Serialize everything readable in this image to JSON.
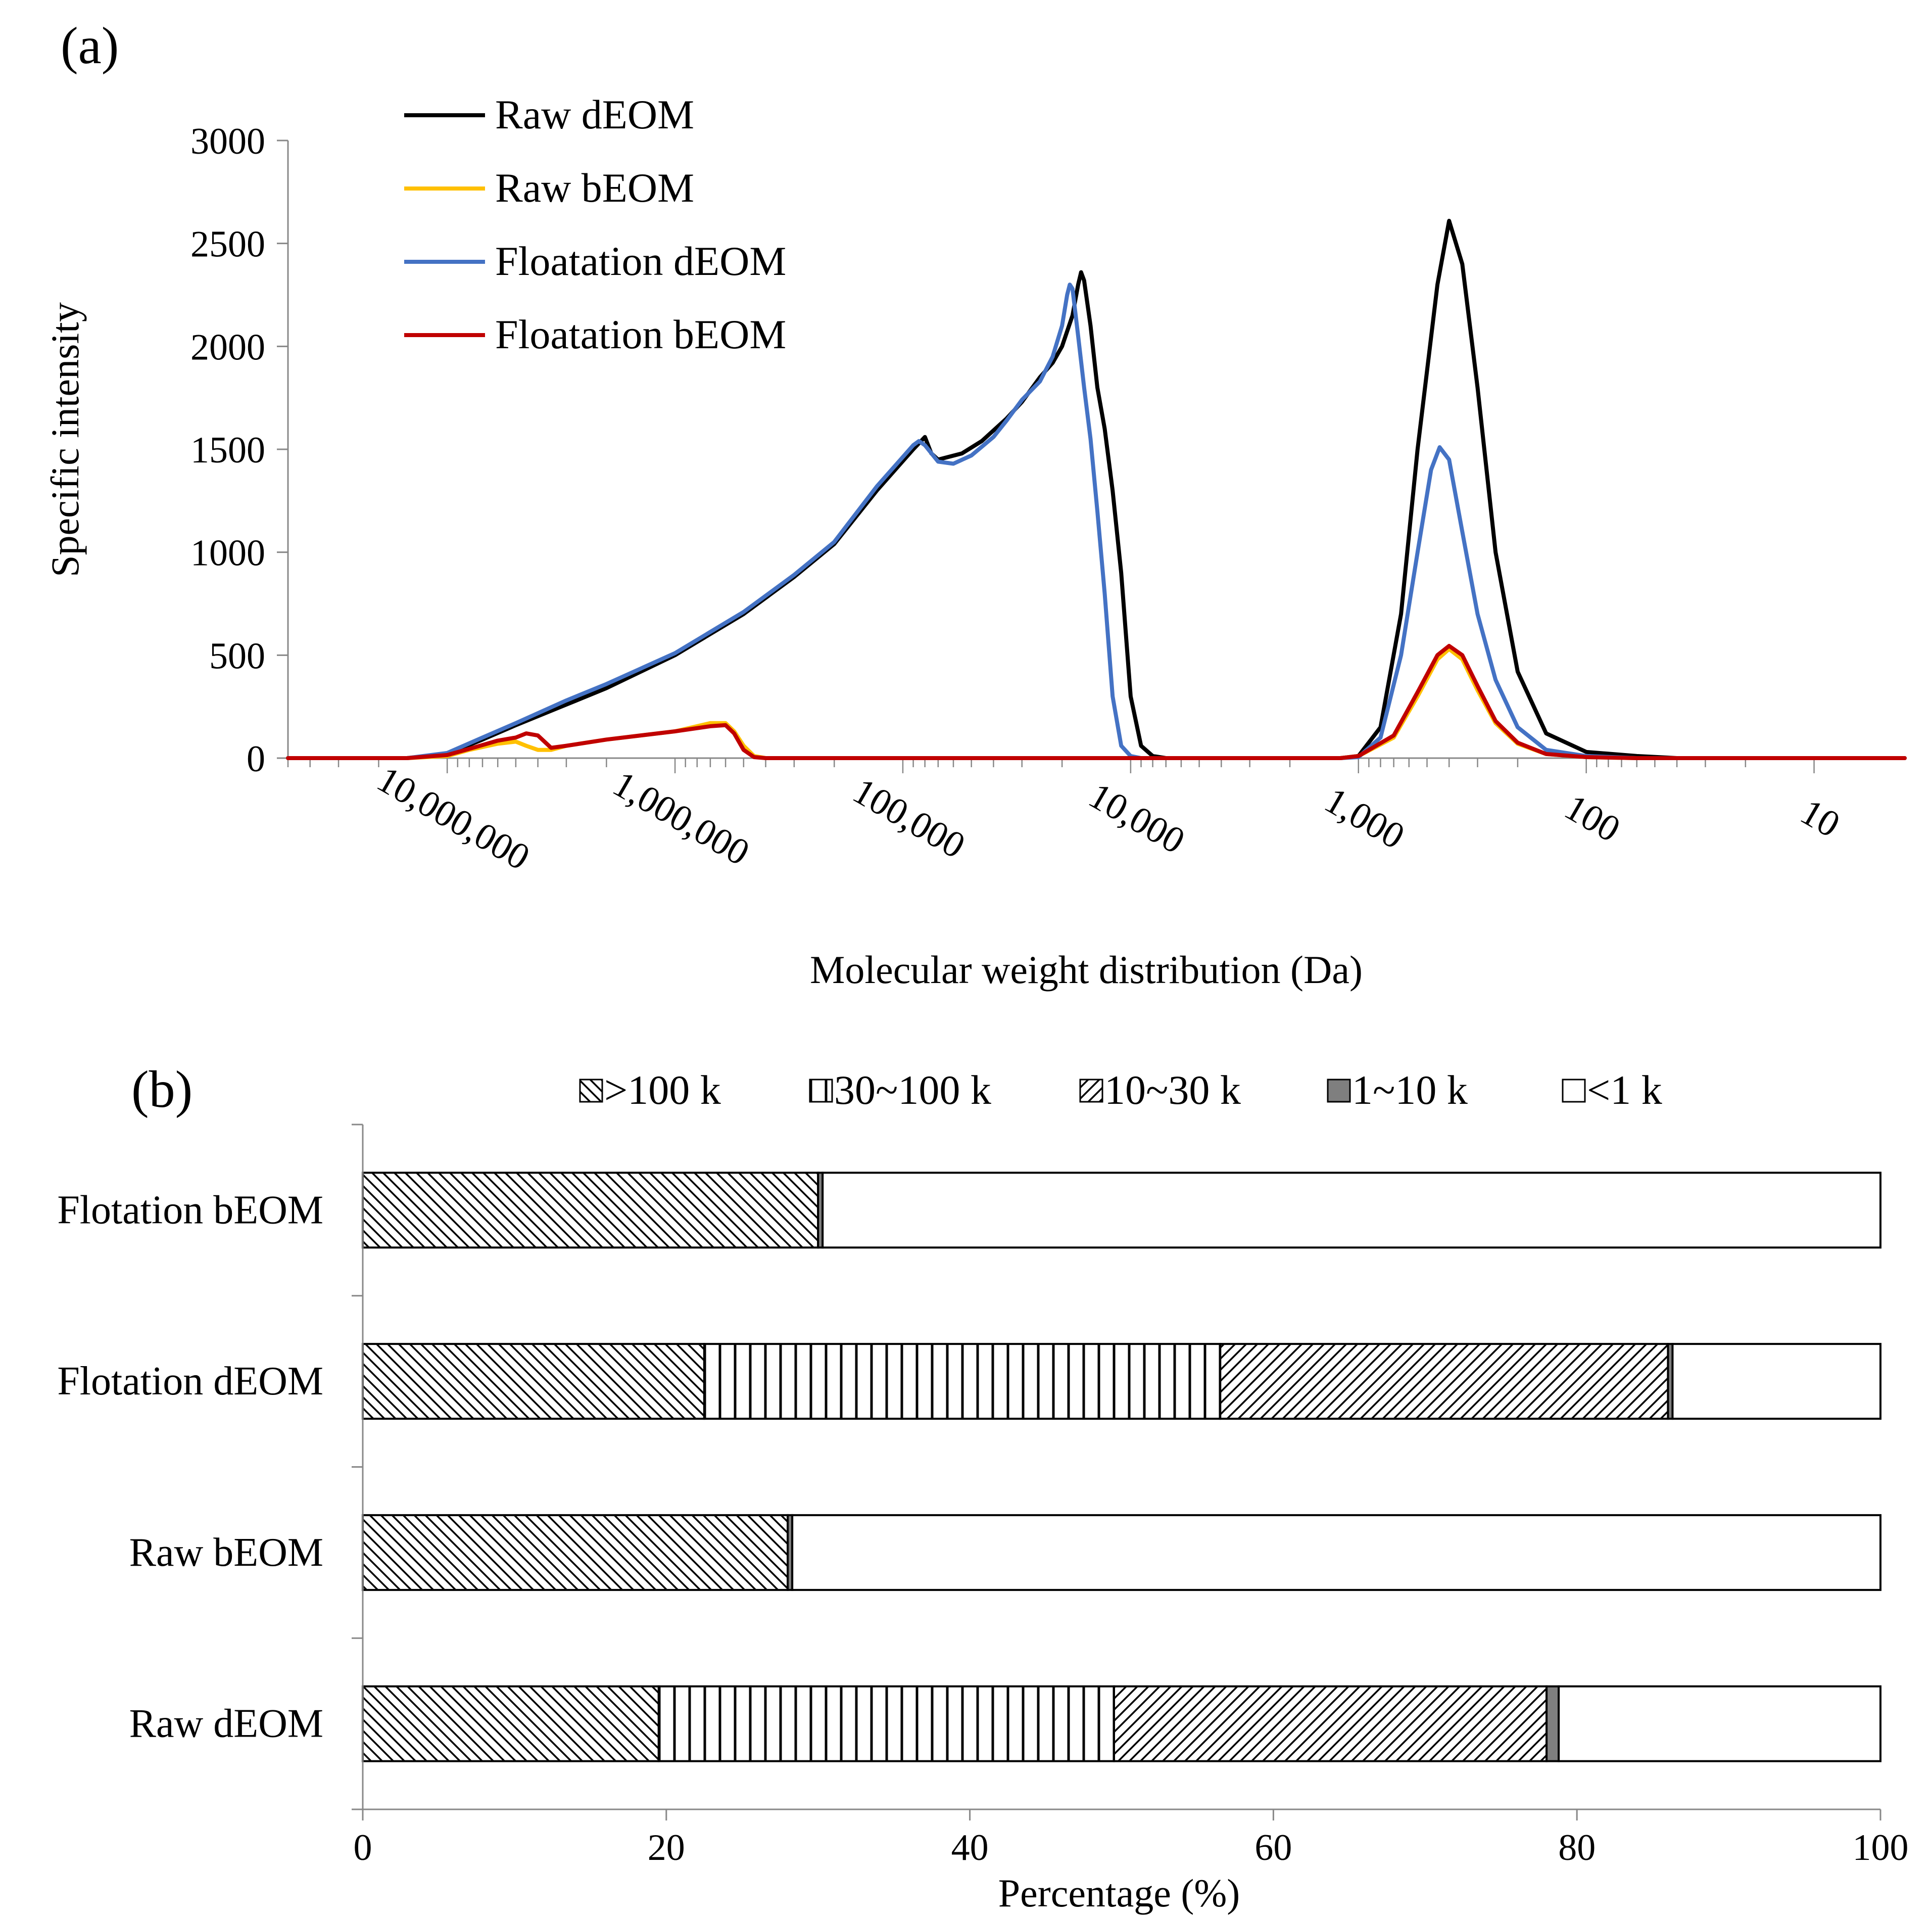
{
  "chart_data": [
    {
      "panel_label": "(a)",
      "type": "line",
      "title": "",
      "xlabel": "Molecular weight distribution (Da)",
      "ylabel": "Specific intensity",
      "x_scale": "log-reversed",
      "xlim": [
        50000000,
        4
      ],
      "ylim": [
        0,
        3000
      ],
      "yticks": [
        "0",
        "500",
        "1000",
        "1500",
        "2000",
        "2500",
        "3000"
      ],
      "xtick_labels": [
        {
          "value": 10000000,
          "label": "10,000,000"
        },
        {
          "value": 1000000,
          "label": "1,000,000"
        },
        {
          "value": 100000,
          "label": "100,000"
        },
        {
          "value": 10000,
          "label": "10,000"
        },
        {
          "value": 1000,
          "label": "1,000"
        },
        {
          "value": 100,
          "label": "100"
        },
        {
          "value": 10,
          "label": "10"
        }
      ],
      "legend_position": "top-left",
      "series": [
        {
          "name": "Raw dEOM",
          "color": "#000000",
          "points": [
            [
              50000000,
              0
            ],
            [
              15000000,
              0
            ],
            [
              10000000,
              20
            ],
            [
              7000000,
              90
            ],
            [
              5000000,
              160
            ],
            [
              3000000,
              260
            ],
            [
              2000000,
              340
            ],
            [
              1000000,
              500
            ],
            [
              500000,
              700
            ],
            [
              300000,
              880
            ],
            [
              200000,
              1040
            ],
            [
              130000,
              1300
            ],
            [
              90000,
              1500
            ],
            [
              80000,
              1560
            ],
            [
              75000,
              1480
            ],
            [
              70000,
              1450
            ],
            [
              55000,
              1480
            ],
            [
              45000,
              1540
            ],
            [
              35000,
              1650
            ],
            [
              30000,
              1730
            ],
            [
              25000,
              1850
            ],
            [
              22000,
              1920
            ],
            [
              20000,
              2000
            ],
            [
              18000,
              2150
            ],
            [
              17000,
              2300
            ],
            [
              16500,
              2360
            ],
            [
              16000,
              2320
            ],
            [
              15000,
              2100
            ],
            [
              14000,
              1800
            ],
            [
              13000,
              1600
            ],
            [
              12000,
              1300
            ],
            [
              11000,
              900
            ],
            [
              10000,
              300
            ],
            [
              9000,
              60
            ],
            [
              8000,
              10
            ],
            [
              7000,
              0
            ],
            [
              1200,
              0
            ],
            [
              1000,
              10
            ],
            [
              800,
              150
            ],
            [
              650,
              700
            ],
            [
              550,
              1500
            ],
            [
              450,
              2300
            ],
            [
              400,
              2610
            ],
            [
              350,
              2400
            ],
            [
              300,
              1800
            ],
            [
              250,
              1000
            ],
            [
              200,
              420
            ],
            [
              150,
              120
            ],
            [
              100,
              30
            ],
            [
              60,
              10
            ],
            [
              40,
              0
            ],
            [
              4,
              0
            ]
          ]
        },
        {
          "name": "Raw bEOM",
          "color": "#FFC000",
          "points": [
            [
              50000000,
              0
            ],
            [
              15000000,
              0
            ],
            [
              10000000,
              10
            ],
            [
              8000000,
              40
            ],
            [
              6000000,
              70
            ],
            [
              5000000,
              80
            ],
            [
              4500000,
              60
            ],
            [
              4000000,
              40
            ],
            [
              3500000,
              40
            ],
            [
              3000000,
              60
            ],
            [
              2000000,
              90
            ],
            [
              1000000,
              130
            ],
            [
              700000,
              170
            ],
            [
              600000,
              170
            ],
            [
              550000,
              130
            ],
            [
              500000,
              60
            ],
            [
              450000,
              10
            ],
            [
              400000,
              0
            ],
            [
              1200,
              0
            ],
            [
              1000,
              10
            ],
            [
              700,
              100
            ],
            [
              550,
              300
            ],
            [
              450,
              480
            ],
            [
              400,
              530
            ],
            [
              350,
              480
            ],
            [
              300,
              330
            ],
            [
              250,
              170
            ],
            [
              200,
              70
            ],
            [
              150,
              20
            ],
            [
              100,
              5
            ],
            [
              60,
              0
            ],
            [
              4,
              0
            ]
          ]
        },
        {
          "name": "Floatation dEOM",
          "color": "#4472C4",
          "points": [
            [
              50000000,
              0
            ],
            [
              15000000,
              0
            ],
            [
              10000000,
              25
            ],
            [
              7000000,
              100
            ],
            [
              5000000,
              170
            ],
            [
              3000000,
              280
            ],
            [
              2000000,
              360
            ],
            [
              1000000,
              510
            ],
            [
              500000,
              710
            ],
            [
              300000,
              890
            ],
            [
              200000,
              1050
            ],
            [
              130000,
              1320
            ],
            [
              90000,
              1520
            ],
            [
              85000,
              1540
            ],
            [
              80000,
              1520
            ],
            [
              70000,
              1440
            ],
            [
              60000,
              1430
            ],
            [
              50000,
              1470
            ],
            [
              40000,
              1560
            ],
            [
              35000,
              1640
            ],
            [
              30000,
              1740
            ],
            [
              25000,
              1830
            ],
            [
              22000,
              1950
            ],
            [
              20000,
              2100
            ],
            [
              19000,
              2250
            ],
            [
              18500,
              2300
            ],
            [
              18000,
              2280
            ],
            [
              17000,
              2050
            ],
            [
              16000,
              1800
            ],
            [
              15000,
              1550
            ],
            [
              14000,
              1200
            ],
            [
              13000,
              800
            ],
            [
              12000,
              300
            ],
            [
              11000,
              60
            ],
            [
              10000,
              10
            ],
            [
              9000,
              0
            ],
            [
              1200,
              0
            ],
            [
              1000,
              5
            ],
            [
              800,
              100
            ],
            [
              650,
              500
            ],
            [
              550,
              1000
            ],
            [
              480,
              1400
            ],
            [
              440,
              1510
            ],
            [
              400,
              1450
            ],
            [
              350,
              1100
            ],
            [
              300,
              700
            ],
            [
              250,
              380
            ],
            [
              200,
              150
            ],
            [
              150,
              40
            ],
            [
              100,
              10
            ],
            [
              60,
              0
            ],
            [
              4,
              0
            ]
          ]
        },
        {
          "name": "Floatation bEOM",
          "color": "#C00000",
          "points": [
            [
              50000000,
              0
            ],
            [
              15000000,
              0
            ],
            [
              10000000,
              15
            ],
            [
              8000000,
              45
            ],
            [
              6000000,
              85
            ],
            [
              5000000,
              100
            ],
            [
              4500000,
              120
            ],
            [
              4000000,
              110
            ],
            [
              3500000,
              50
            ],
            [
              3000000,
              60
            ],
            [
              2000000,
              90
            ],
            [
              1000000,
              130
            ],
            [
              700000,
              155
            ],
            [
              600000,
              160
            ],
            [
              550000,
              120
            ],
            [
              500000,
              40
            ],
            [
              450000,
              5
            ],
            [
              400000,
              0
            ],
            [
              1200,
              0
            ],
            [
              1000,
              10
            ],
            [
              700,
              110
            ],
            [
              550,
              320
            ],
            [
              450,
              500
            ],
            [
              400,
              545
            ],
            [
              350,
              500
            ],
            [
              300,
              350
            ],
            [
              250,
              180
            ],
            [
              200,
              75
            ],
            [
              150,
              20
            ],
            [
              100,
              5
            ],
            [
              60,
              0
            ],
            [
              4,
              0
            ]
          ]
        }
      ]
    },
    {
      "panel_label": "(b)",
      "type": "bar",
      "orientation": "horizontal",
      "stacked": true,
      "xlabel": "Percentage (%)",
      "ylabel": "",
      "xlim": [
        0,
        100
      ],
      "xticks": [
        "0",
        "20",
        "40",
        "60",
        "80",
        "100"
      ],
      "legend_position": "top",
      "categories": [
        "Flotation bEOM",
        "Flotation dEOM",
        "Raw bEOM",
        "Raw dEOM"
      ],
      "series": [
        {
          "name": ">100 k",
          "pattern": "diag-back",
          "values": [
            30.0,
            22.5,
            28.0,
            19.5
          ]
        },
        {
          "name": "30~100 k",
          "pattern": "vertical",
          "values": [
            0.0,
            34.0,
            0.0,
            30.0
          ]
        },
        {
          "name": "10~30 k",
          "pattern": "diag-fwd",
          "values": [
            0.0,
            29.5,
            0.0,
            28.5
          ]
        },
        {
          "name": "1~10 k",
          "pattern": "solid-gray",
          "values": [
            0.3,
            0.3,
            0.3,
            0.8
          ]
        },
        {
          "name": "<1 k",
          "pattern": "white",
          "values": [
            69.7,
            13.7,
            71.7,
            21.2
          ]
        }
      ]
    }
  ]
}
